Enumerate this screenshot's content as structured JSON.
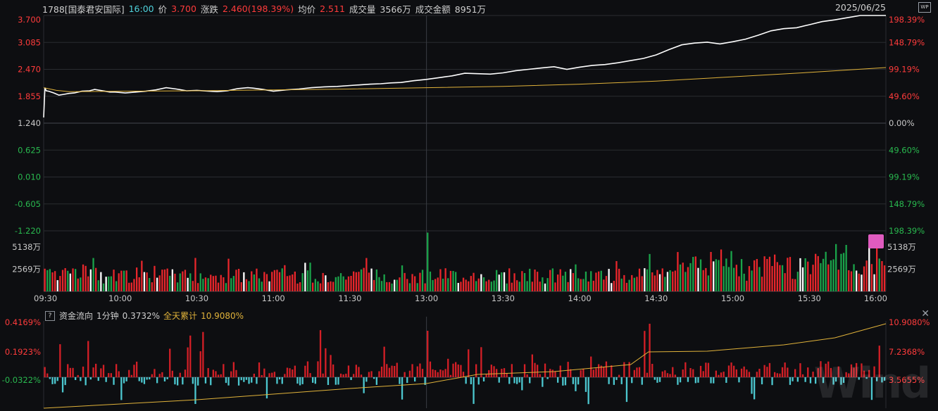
{
  "header": {
    "code_name": "1788[国泰君安国际]",
    "time": "16:00",
    "price_label": "价",
    "price": "3.700",
    "change_label": "涨跌",
    "change": "2.460(198.39%)",
    "avg_label": "均价",
    "avg": "2.511",
    "volume_label": "成交量",
    "volume": "3566万",
    "amount_label": "成交金额",
    "amount": "8951万",
    "date": "2025/06/25",
    "wp_icon": "WP"
  },
  "flow_header": {
    "help": "?",
    "title": "资金流向",
    "period": "1分钟",
    "value": "0.3732%",
    "cum_label": "全天累计",
    "cum_value": "10.9080%"
  },
  "watermark": "Wind",
  "colors": {
    "background": "#0d0e11",
    "grid": "#2a2c31",
    "up": "#e8262b",
    "down": "#1aa34a",
    "price_line": "#ffffff",
    "avg_line": "#e0b23a",
    "flow_pos": "#d41f26",
    "flow_neg": "#4cc7cf",
    "flow_cum": "#e0b23a",
    "axis_red": "#ff3b3b",
    "axis_green": "#29b94f",
    "axis_gray": "#c8c8c8"
  },
  "chart_data": [
    {
      "type": "line",
      "title": "",
      "x_ticks": [
        "09:30",
        "10:00",
        "10:30",
        "11:00",
        "11:30",
        "13:00",
        "13:30",
        "14:00",
        "14:30",
        "15:00",
        "15:30",
        "16:00"
      ],
      "y_left_ticks": [
        "3.700",
        "3.085",
        "2.470",
        "1.855",
        "1.240",
        "0.625",
        "0.010",
        "-0.605",
        "-1.220"
      ],
      "y_right_ticks": [
        "198.39%",
        "148.79%",
        "99.19%",
        "49.60%",
        "0.00%",
        "49.60%",
        "99.19%",
        "148.79%",
        "198.39%"
      ],
      "ylim": [
        -1.22,
        3.7
      ],
      "prev_close": 1.24,
      "series": [
        {
          "name": "价",
          "x": [
            0,
            0.5,
            1,
            2,
            4,
            6,
            8,
            10,
            12,
            15,
            18,
            20,
            24,
            26,
            28,
            32,
            36,
            40,
            44,
            48,
            52,
            56,
            60,
            65,
            68,
            72,
            76,
            80,
            82,
            86,
            90,
            95,
            100,
            105,
            110,
            115,
            120,
            125,
            128,
            132,
            136,
            140,
            145,
            150,
            155,
            160,
            165,
            170,
            175,
            180,
            185,
            190,
            195,
            200,
            205,
            210,
            215,
            220,
            225,
            230,
            235,
            240,
            245,
            250,
            255,
            260,
            265,
            270,
            275,
            280,
            285,
            290,
            295,
            300,
            305,
            310,
            315,
            320,
            325,
            330
          ],
          "values": [
            1.37,
            2.05,
            1.98,
            1.97,
            1.93,
            1.88,
            1.9,
            1.92,
            1.93,
            1.97,
            1.98,
            2.01,
            1.97,
            1.95,
            1.95,
            1.93,
            1.95,
            1.97,
            2.0,
            2.05,
            2.02,
            1.98,
            1.99,
            1.97,
            1.96,
            1.98,
            2.03,
            2.05,
            2.04,
            2.01,
            1.97,
            2.0,
            2.02,
            2.05,
            2.07,
            2.08,
            2.1,
            2.12,
            2.13,
            2.14,
            2.16,
            2.17,
            2.21,
            2.24,
            2.28,
            2.32,
            2.38,
            2.37,
            2.36,
            2.39,
            2.44,
            2.47,
            2.5,
            2.53,
            2.47,
            2.52,
            2.56,
            2.58,
            2.62,
            2.67,
            2.72,
            2.8,
            2.92,
            3.03,
            3.07,
            3.09,
            3.05,
            3.1,
            3.16,
            3.25,
            3.35,
            3.4,
            3.42,
            3.49,
            3.56,
            3.6,
            3.65,
            3.7,
            3.7,
            3.7
          ]
        },
        {
          "name": "均价",
          "x": [
            0,
            5,
            10,
            30,
            60,
            90,
            120,
            150,
            180,
            210,
            240,
            270,
            300,
            330
          ],
          "values": [
            2.05,
            1.99,
            1.96,
            1.97,
            1.98,
            2.0,
            2.02,
            2.05,
            2.08,
            2.13,
            2.2,
            2.3,
            2.4,
            2.51
          ]
        }
      ]
    },
    {
      "type": "bar",
      "title": "成交量",
      "y_ticks": [
        "5138万",
        "2569万"
      ],
      "ylim": [
        0,
        7000
      ],
      "unit": "万"
    },
    {
      "type": "bar",
      "title": "资金流向",
      "y_left_ticks": [
        "0.4169%",
        "0.1923%",
        "-0.0322%"
      ],
      "y_right_ticks": [
        "10.9080%",
        "7.2368%",
        "3.5655%"
      ],
      "ylim": [
        -0.0322,
        0.4169
      ],
      "cum_ylim": [
        3.5655,
        10.908
      ],
      "cum_final": 10.908
    }
  ]
}
